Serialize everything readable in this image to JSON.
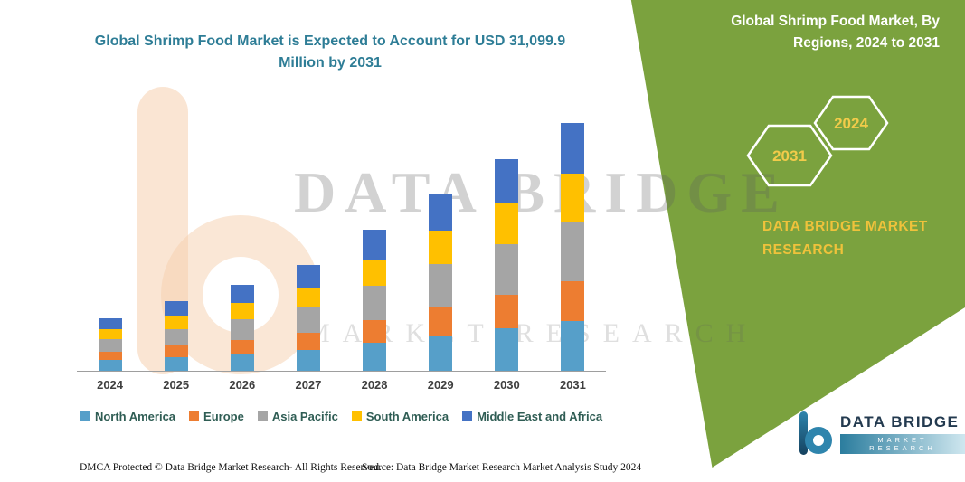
{
  "title": "Global Shrimp Food Market is Expected to Account for USD 31,099.9 Million by 2031",
  "right_panel": {
    "title_line1": "Global Shrimp Food Market, By",
    "title_line2": "Regions, 2024 to 2031",
    "hexagon_left": "2031",
    "hexagon_right": "2024",
    "brand_line1": "DATA BRIDGE MARKET",
    "brand_line2": "RESEARCH",
    "panel_color": "#7BA23E",
    "accent_color": "#F2CB4A"
  },
  "watermark": {
    "line1": "DATA BRIDGE",
    "line2": "MARKET RESEARCH"
  },
  "footer": {
    "dmca": "DMCA Protected © Data Bridge Market Research-  All Rights Reserved.",
    "source": "Source: Data Bridge Market Research  Market Analysis Study 2024"
  },
  "logo": {
    "title": "DATA BRIDGE",
    "subtitle": "MARKET RESEARCH"
  },
  "chart_data": {
    "type": "bar",
    "stacked": true,
    "title": "Global Shrimp Food Market is Expected to Account for USD 31,099.9 Million by 2031",
    "unit": "USD Million",
    "categories": [
      "2024",
      "2025",
      "2026",
      "2027",
      "2028",
      "2029",
      "2030",
      "2031"
    ],
    "series": [
      {
        "name": "North America",
        "color": "#569FC9",
        "values": [
          1320,
          1750,
          2160,
          2660,
          3540,
          4450,
          5310,
          6200
        ]
      },
      {
        "name": "Europe",
        "color": "#ED7D31",
        "values": [
          1056,
          1400,
          1728,
          2128,
          2832,
          3560,
          4248,
          5000
        ]
      },
      {
        "name": "Asia Pacific",
        "color": "#A5A5A5",
        "values": [
          1584,
          2100,
          2592,
          3192,
          4248,
          5340,
          6372,
          7500
        ]
      },
      {
        "name": "South America",
        "color": "#FFC000",
        "values": [
          1254,
          1662,
          2052,
          2527,
          3363,
          4227,
          5044,
          6000
        ]
      },
      {
        "name": "Middle East and Africa",
        "color": "#4472C4",
        "values": [
          1386,
          1838,
          2268,
          2793,
          3717,
          4673,
          5576,
          6399.9
        ]
      }
    ],
    "estimated_totals": [
      6600,
      8750,
      10800,
      13300,
      17700,
      22250,
      26550,
      31099.9
    ],
    "ylim": [
      0,
      32000
    ],
    "value_axis_visible": false,
    "gridlines": false,
    "legend_position": "bottom"
  }
}
